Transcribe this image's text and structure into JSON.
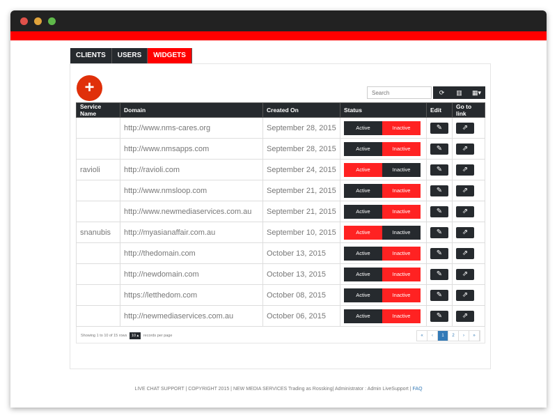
{
  "tabs": [
    {
      "label": "CLIENTS"
    },
    {
      "label": "USERS"
    },
    {
      "label": "WIDGETS",
      "active": true
    }
  ],
  "add_label": "+",
  "search": {
    "placeholder": "Search"
  },
  "toolbar": {
    "refresh": "⟳",
    "columns": "▥",
    "grid": "▦▾"
  },
  "columns": [
    "Service Name",
    "Domain",
    "Created On",
    "Status",
    "Edit",
    "Go to link"
  ],
  "status_labels": {
    "active": "Active",
    "inactive": "Inactive"
  },
  "rows": [
    {
      "service": "",
      "domain": "http://www.nms-cares.org",
      "created": "September 28, 2015",
      "status": "inactive"
    },
    {
      "service": "",
      "domain": "http://www.nmsapps.com",
      "created": "September 28, 2015",
      "status": "inactive"
    },
    {
      "service": "ravioli",
      "domain": "http://ravioli.com",
      "created": "September 24, 2015",
      "status": "active"
    },
    {
      "service": "",
      "domain": "http://www.nmsloop.com",
      "created": "September 21, 2015",
      "status": "inactive"
    },
    {
      "service": "",
      "domain": "http://www.newmediaservices.com.au",
      "created": "September 21, 2015",
      "status": "inactive"
    },
    {
      "service": "snanubis",
      "domain": "http://myasianaffair.com.au",
      "created": "September 10, 2015",
      "status": "active"
    },
    {
      "service": "",
      "domain": "http://thedomain.com",
      "created": "October 13, 2015",
      "status": "inactive"
    },
    {
      "service": "",
      "domain": "http://newdomain.com",
      "created": "October 13, 2015",
      "status": "inactive"
    },
    {
      "service": "",
      "domain": "https://letthedom.com",
      "created": "October 08, 2015",
      "status": "inactive"
    },
    {
      "service": "",
      "domain": "http://newmediaservices.com.au",
      "created": "October 06, 2015",
      "status": "inactive"
    }
  ],
  "footer": {
    "showing": "Showing 1 to 10 of 15 rows",
    "page_size": "10 ▴",
    "per_page": "records per page"
  },
  "pager": [
    "«",
    "‹",
    "1",
    "2",
    "›",
    "»"
  ],
  "current_page": "1",
  "copyright": "LIVE CHAT SUPPORT | COPYRIGHT 2015 | NEW MEDIA SERVICES Trading as Rossking| Administrator : Admin LiveSupport | ",
  "faq": "FAQ",
  "colors": {
    "accent": "#ff0000",
    "dark": "#262a2e",
    "link": "#337ab7"
  }
}
